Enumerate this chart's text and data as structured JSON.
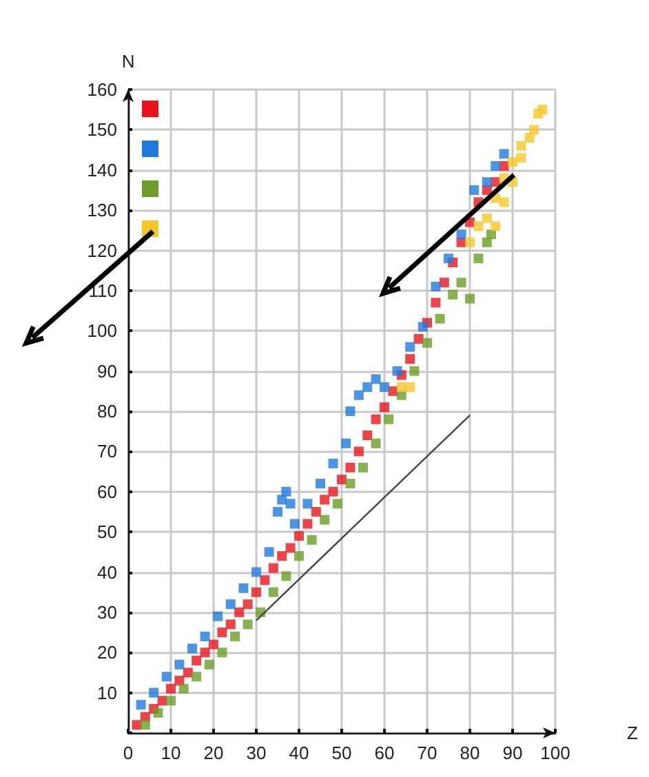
{
  "chart_data": {
    "type": "scatter",
    "xlabel": "Z",
    "ylabel": "N",
    "xlim": [
      0,
      100
    ],
    "ylim": [
      0,
      160
    ],
    "xticks": [
      0,
      10,
      20,
      30,
      40,
      50,
      60,
      70,
      80,
      90,
      100
    ],
    "yticks": [
      {
        "value": 0,
        "label": null
      },
      10,
      20,
      30,
      40,
      50,
      60,
      70,
      80,
      90,
      100,
      110,
      120,
      130,
      140,
      150,
      160
    ],
    "grid": true,
    "marker": "square",
    "series": [
      {
        "color": "#e8141c",
        "x": [
          2,
          4,
          6,
          8,
          10,
          12,
          14,
          16,
          18,
          20,
          22,
          24,
          26,
          28,
          30,
          32,
          34,
          36,
          38,
          40,
          42,
          44,
          46,
          48,
          50,
          52,
          54,
          56,
          58,
          60,
          62,
          64,
          66,
          68,
          70,
          72,
          74,
          76,
          78,
          80,
          82,
          84,
          86,
          88
        ],
        "values": [
          2,
          4,
          6,
          8,
          11,
          13,
          15,
          18,
          20,
          22,
          25,
          27,
          30,
          32,
          35,
          38,
          41,
          44,
          46,
          49,
          52,
          55,
          58,
          60,
          63,
          66,
          70,
          74,
          78,
          81,
          85,
          89,
          93,
          98,
          102,
          107,
          112,
          117,
          122,
          127,
          132,
          135,
          137,
          141
        ]
      },
      {
        "color": "#1f7ae0",
        "x": [
          3,
          6,
          9,
          12,
          15,
          18,
          21,
          24,
          27,
          30,
          33,
          35,
          36,
          37,
          38,
          39,
          42,
          45,
          48,
          51,
          52,
          54,
          56,
          58,
          60,
          63,
          66,
          69,
          72,
          75,
          78,
          81,
          84,
          86,
          88
        ],
        "values": [
          7,
          10,
          14,
          17,
          21,
          24,
          29,
          32,
          36,
          40,
          45,
          55,
          58,
          60,
          57,
          52,
          57,
          62,
          67,
          72,
          80,
          84,
          86,
          88,
          86,
          90,
          96,
          101,
          111,
          118,
          124,
          135,
          137,
          141,
          144
        ]
      },
      {
        "color": "#6a9e24",
        "x": [
          4,
          7,
          10,
          13,
          16,
          19,
          22,
          25,
          28,
          31,
          34,
          37,
          40,
          43,
          46,
          49,
          52,
          55,
          58,
          61,
          64,
          67,
          70,
          73,
          76,
          78,
          80,
          82,
          84,
          85
        ],
        "values": [
          2,
          5,
          8,
          11,
          14,
          17,
          20,
          24,
          27,
          30,
          35,
          39,
          44,
          48,
          53,
          57,
          62,
          66,
          72,
          78,
          84,
          90,
          97,
          103,
          109,
          112,
          108,
          118,
          122,
          124
        ]
      },
      {
        "color": "#f7c729",
        "x": [
          64,
          66,
          80,
          82,
          84,
          86,
          86,
          88,
          88,
          90,
          90,
          92,
          92,
          94,
          95,
          96,
          97
        ],
        "values": [
          86,
          86,
          122,
          126,
          128,
          126,
          133,
          132,
          138,
          137,
          142,
          143,
          146,
          148,
          150,
          154,
          155
        ]
      },
      {
        "type": "line",
        "marker": "none",
        "color": "#444444",
        "x": [
          30,
          80
        ],
        "values": [
          28,
          79
        ]
      }
    ]
  }
}
